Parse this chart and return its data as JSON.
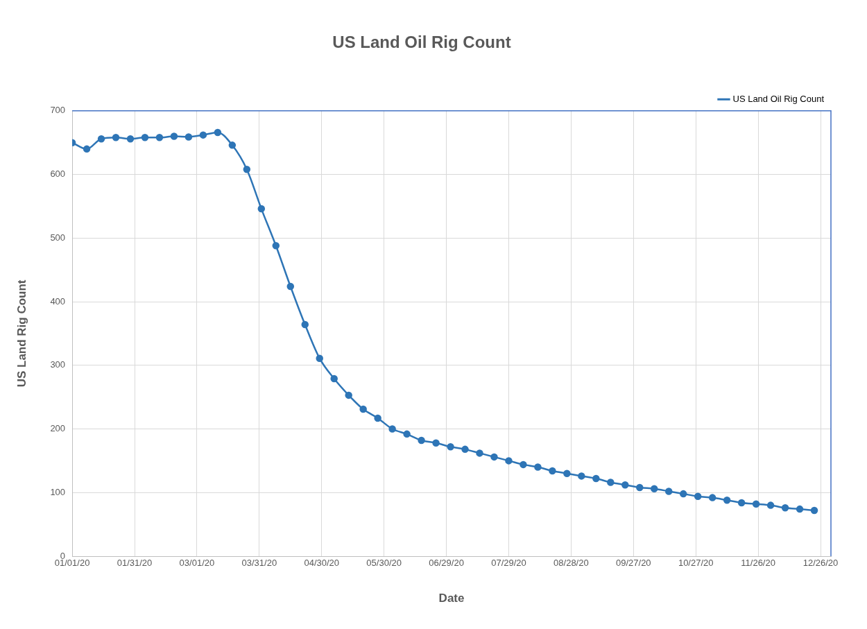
{
  "chart_data": {
    "type": "line",
    "title": "US Land Oil Rig Count",
    "xlabel": "Date",
    "ylabel": "US Land Rig Count",
    "x": [
      "2020-01-01",
      "2020-01-08",
      "2020-01-15",
      "2020-01-22",
      "2020-01-29",
      "2020-02-05",
      "2020-02-12",
      "2020-02-19",
      "2020-02-26",
      "2020-03-04",
      "2020-03-11",
      "2020-03-18",
      "2020-03-25",
      "2020-04-01",
      "2020-04-08",
      "2020-04-15",
      "2020-04-22",
      "2020-04-29",
      "2020-05-06",
      "2020-05-13",
      "2020-05-20",
      "2020-05-27",
      "2020-06-03",
      "2020-06-10",
      "2020-06-17",
      "2020-06-24",
      "2020-07-01",
      "2020-07-08",
      "2020-07-15",
      "2020-07-22",
      "2020-07-29",
      "2020-08-05",
      "2020-08-12",
      "2020-08-19",
      "2020-08-26",
      "2020-09-02",
      "2020-09-09",
      "2020-09-16",
      "2020-09-23",
      "2020-09-30",
      "2020-10-07",
      "2020-10-14",
      "2020-10-21",
      "2020-10-28",
      "2020-11-04",
      "2020-11-11",
      "2020-11-18",
      "2020-11-25",
      "2020-12-02",
      "2020-12-09",
      "2020-12-16",
      "2020-12-23"
    ],
    "series": [
      {
        "name": "US Land Oil Rig Count",
        "color": "#2e75b6",
        "values": [
          650,
          640,
          656,
          658,
          656,
          658,
          658,
          660,
          659,
          662,
          666,
          646,
          608,
          546,
          488,
          424,
          364,
          311,
          279,
          253,
          231,
          217,
          200,
          192,
          182,
          178,
          172,
          168,
          162,
          156,
          150,
          144,
          140,
          134,
          130,
          126,
          122,
          116,
          112,
          108,
          106,
          102,
          98,
          94,
          92,
          88,
          84,
          82,
          80,
          76,
          74,
          72
        ]
      }
    ],
    "xlim": [
      "2020-01-01",
      "2020-12-31"
    ],
    "xticks": [
      {
        "value": "2020-01-01",
        "label": "01/01/20"
      },
      {
        "value": "2020-01-31",
        "label": "01/31/20"
      },
      {
        "value": "2020-03-01",
        "label": "03/01/20"
      },
      {
        "value": "2020-03-31",
        "label": "03/31/20"
      },
      {
        "value": "2020-04-30",
        "label": "04/30/20"
      },
      {
        "value": "2020-05-30",
        "label": "05/30/20"
      },
      {
        "value": "2020-06-29",
        "label": "06/29/20"
      },
      {
        "value": "2020-07-29",
        "label": "07/29/20"
      },
      {
        "value": "2020-08-28",
        "label": "08/28/20"
      },
      {
        "value": "2020-09-27",
        "label": "09/27/20"
      },
      {
        "value": "2020-10-27",
        "label": "10/27/20"
      },
      {
        "value": "2020-11-26",
        "label": "11/26/20"
      },
      {
        "value": "2020-12-26",
        "label": "12/26/20"
      }
    ],
    "ylim": [
      0,
      700
    ],
    "yticks": [
      0,
      100,
      200,
      300,
      400,
      500,
      600,
      700
    ],
    "grid": true,
    "legend": "top right",
    "marker": "circle",
    "line_style": "solid"
  }
}
